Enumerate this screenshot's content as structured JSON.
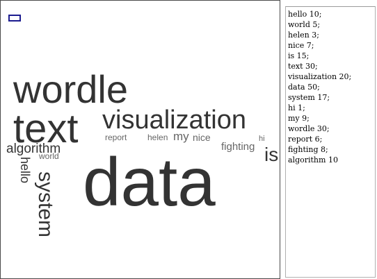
{
  "cloud": {
    "words": [
      {
        "text": "wordle"
      },
      {
        "text": "text"
      },
      {
        "text": "visualization"
      },
      {
        "text": "report"
      },
      {
        "text": "helen"
      },
      {
        "text": "my"
      },
      {
        "text": "nice"
      },
      {
        "text": "fighting"
      },
      {
        "text": "hi"
      },
      {
        "text": "is"
      },
      {
        "text": "algorithm"
      },
      {
        "text": "world"
      },
      {
        "text": "hello"
      },
      {
        "text": "data"
      },
      {
        "text": "system"
      }
    ]
  },
  "input": {
    "lines": [
      "hello 10;",
      "world 5;",
      "helen 3;",
      "nice 7;",
      "is 15;",
      "text 30;",
      "visualization 20;",
      "data 50;",
      "system 17;",
      "hi 1;",
      "my 9;",
      "wordle 30;",
      "report 6;",
      "fighting 8;",
      "algorithm 10"
    ]
  },
  "colors": {
    "word_dark": "#333333",
    "word_light": "#666666",
    "marker": "#1b1b8f"
  }
}
